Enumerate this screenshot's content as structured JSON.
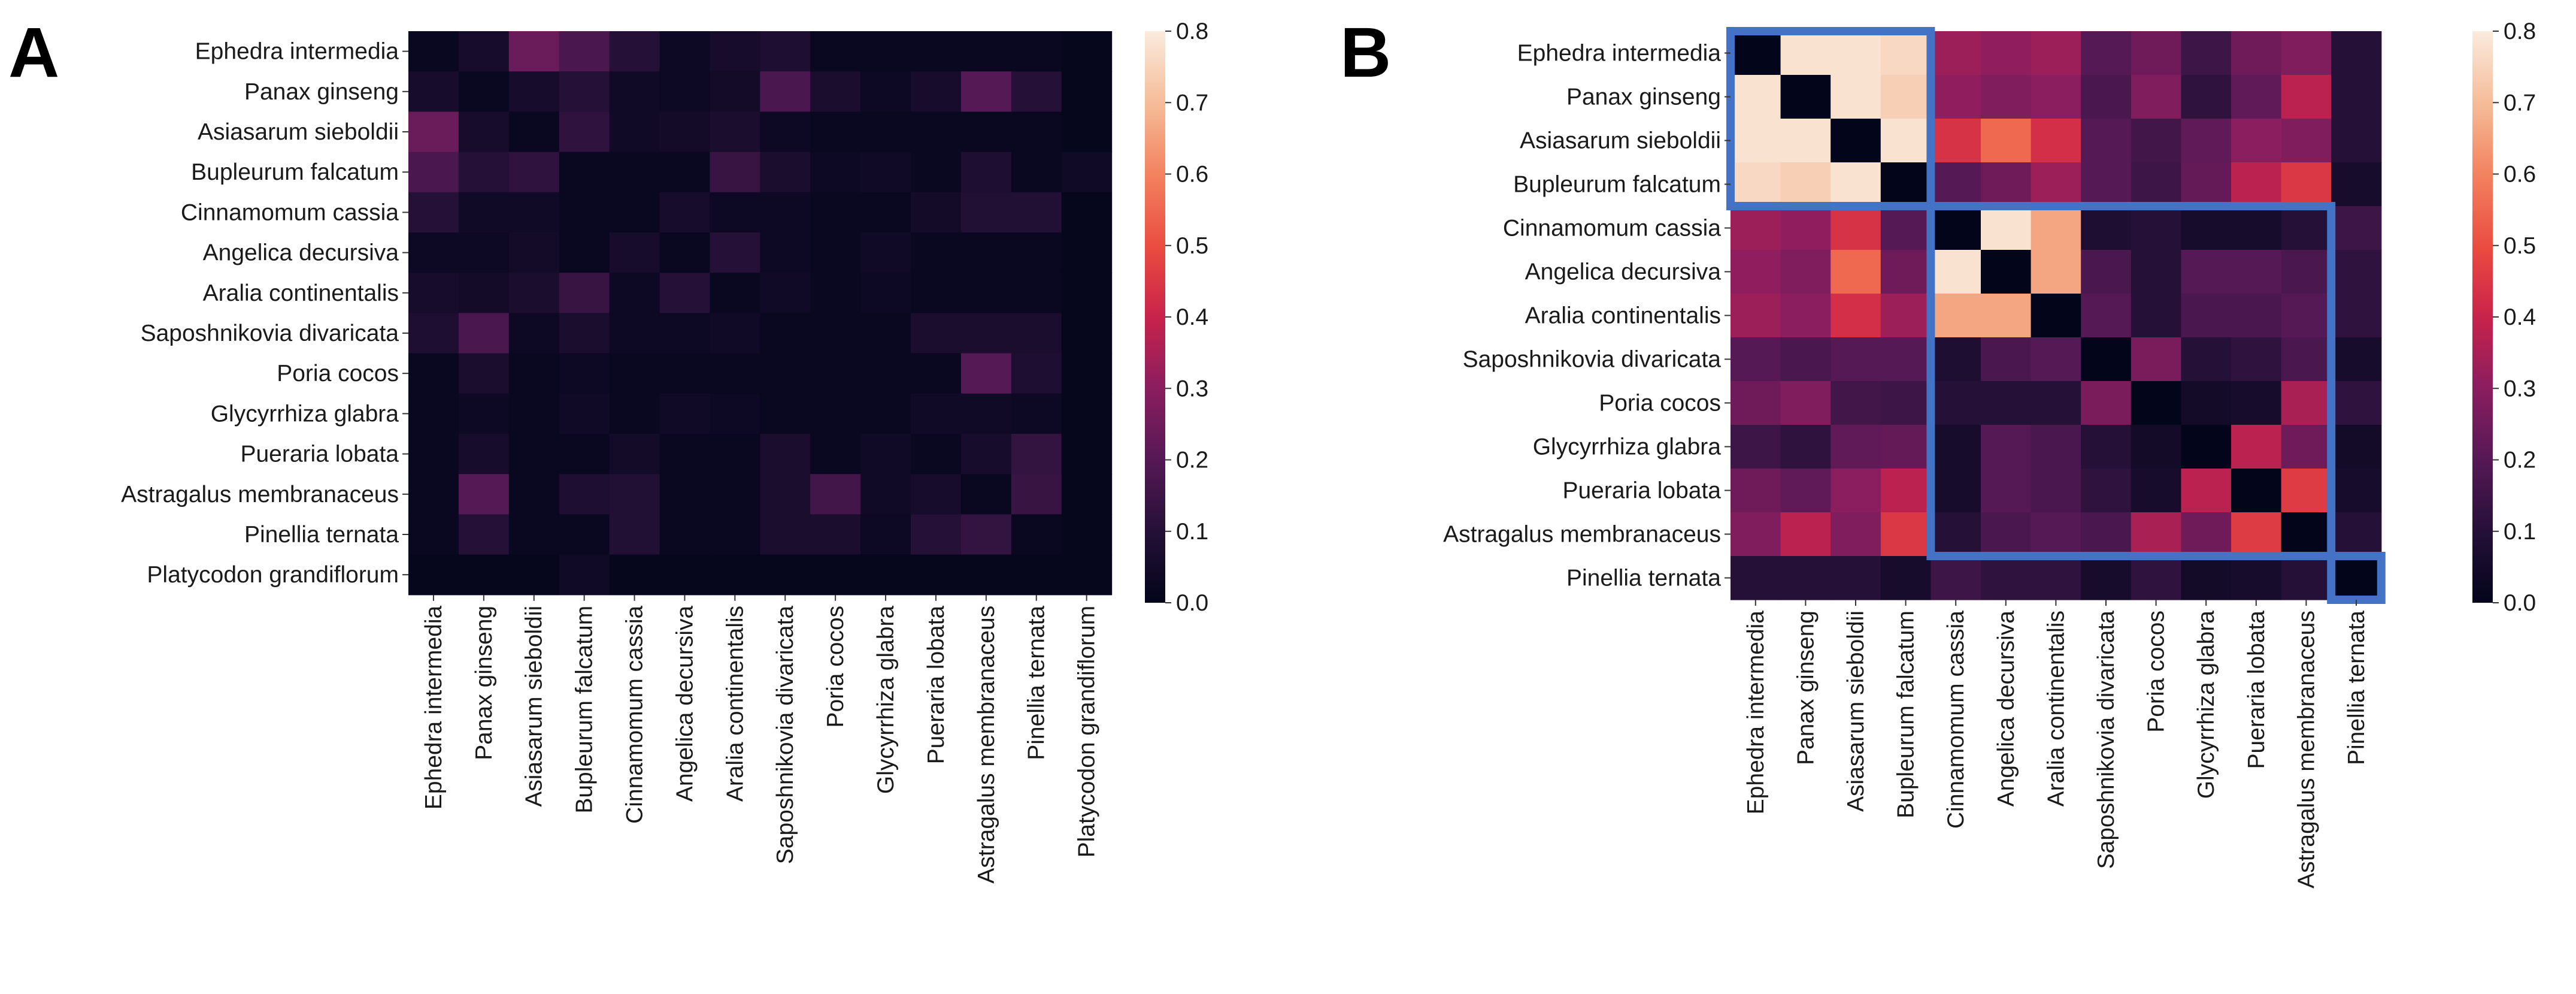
{
  "panel_a_label": "A",
  "panel_b_label": "B",
  "chart_data": [
    {
      "type": "heatmap",
      "panel": "A",
      "title": "",
      "rows": [
        "Ephedra intermedia",
        "Panax ginseng",
        "Asiasarum sieboldii",
        "Bupleurum falcatum",
        "Cinnamomum cassia",
        "Angelica decursiva",
        "Aralia continentalis",
        "Saposhnikovia divaricata",
        "Poria cocos",
        "Glycyrrhiza glabra",
        "Pueraria lobata",
        "Astragalus membranaceus",
        "Pinellia ternata",
        "Platycodon grandiflorum"
      ],
      "columns": [
        "Ephedra intermedia",
        "Panax ginseng",
        "Asiasarum sieboldii",
        "Bupleurum falcatum",
        "Cinnamomum cassia",
        "Angelica decursiva",
        "Aralia continentalis",
        "Saposhnikovia divaricata",
        "Poria cocos",
        "Glycyrrhiza glabra",
        "Pueraria lobata",
        "Astragalus membranaceus",
        "Pinellia ternata",
        "Platycodon grandiflorum"
      ],
      "values": [
        [
          0.02,
          0.06,
          0.24,
          0.18,
          0.1,
          0.03,
          0.06,
          0.08,
          0.02,
          0.02,
          0.02,
          0.02,
          0.02,
          0.01
        ],
        [
          0.06,
          0.02,
          0.06,
          0.1,
          0.04,
          0.03,
          0.05,
          0.18,
          0.07,
          0.03,
          0.06,
          0.2,
          0.1,
          0.01
        ],
        [
          0.24,
          0.06,
          0.02,
          0.12,
          0.04,
          0.05,
          0.07,
          0.03,
          0.02,
          0.02,
          0.02,
          0.02,
          0.02,
          0.01
        ],
        [
          0.18,
          0.1,
          0.12,
          0.02,
          0.02,
          0.02,
          0.14,
          0.07,
          0.03,
          0.04,
          0.02,
          0.08,
          0.02,
          0.04
        ],
        [
          0.1,
          0.04,
          0.04,
          0.02,
          0.02,
          0.06,
          0.03,
          0.03,
          0.02,
          0.02,
          0.05,
          0.09,
          0.09,
          0.01
        ],
        [
          0.03,
          0.03,
          0.05,
          0.02,
          0.06,
          0.02,
          0.1,
          0.03,
          0.02,
          0.04,
          0.02,
          0.02,
          0.02,
          0.01
        ],
        [
          0.06,
          0.05,
          0.07,
          0.14,
          0.03,
          0.1,
          0.02,
          0.04,
          0.02,
          0.03,
          0.02,
          0.02,
          0.02,
          0.01
        ],
        [
          0.08,
          0.18,
          0.03,
          0.07,
          0.03,
          0.03,
          0.04,
          0.02,
          0.02,
          0.02,
          0.07,
          0.07,
          0.07,
          0.01
        ],
        [
          0.02,
          0.07,
          0.02,
          0.03,
          0.02,
          0.02,
          0.02,
          0.02,
          0.02,
          0.02,
          0.02,
          0.2,
          0.08,
          0.01
        ],
        [
          0.02,
          0.03,
          0.02,
          0.04,
          0.02,
          0.04,
          0.03,
          0.02,
          0.02,
          0.02,
          0.04,
          0.04,
          0.03,
          0.01
        ],
        [
          0.02,
          0.06,
          0.02,
          0.02,
          0.05,
          0.02,
          0.02,
          0.07,
          0.02,
          0.04,
          0.02,
          0.06,
          0.13,
          0.01
        ],
        [
          0.02,
          0.2,
          0.02,
          0.08,
          0.09,
          0.02,
          0.02,
          0.07,
          0.16,
          0.04,
          0.06,
          0.02,
          0.14,
          0.01
        ],
        [
          0.02,
          0.1,
          0.02,
          0.02,
          0.09,
          0.02,
          0.02,
          0.07,
          0.07,
          0.03,
          0.1,
          0.13,
          0.02,
          0.01
        ],
        [
          0.01,
          0.01,
          0.01,
          0.04,
          0.01,
          0.01,
          0.01,
          0.01,
          0.01,
          0.01,
          0.01,
          0.01,
          0.01,
          0.01
        ]
      ],
      "colorbar": {
        "min": 0.0,
        "max": 0.8,
        "ticks": [
          "0.0",
          "0.1",
          "0.2",
          "0.3",
          "0.4",
          "0.5",
          "0.6",
          "0.7",
          "0.8"
        ]
      }
    },
    {
      "type": "heatmap",
      "panel": "B",
      "title": "",
      "rows": [
        "Ephedra intermedia",
        "Panax ginseng",
        "Asiasarum sieboldii",
        "Bupleurum falcatum",
        "Cinnamomum cassia",
        "Angelica decursiva",
        "Aralia continentalis",
        "Saposhnikovia divaricata",
        "Poria cocos",
        "Glycyrrhiza glabra",
        "Pueraria lobata",
        "Astragalus membranaceus",
        "Pinellia ternata"
      ],
      "columns": [
        "Ephedra intermedia",
        "Panax ginseng",
        "Asiasarum sieboldii",
        "Bupleurum falcatum",
        "Cinnamomum cassia",
        "Angelica decursiva",
        "Aralia continentalis",
        "Saposhnikovia divaricata",
        "Poria cocos",
        "Glycyrrhiza glabra",
        "Pueraria lobata",
        "Astragalus membranaceus",
        "Pinellia ternata"
      ],
      "values": [
        [
          0.0,
          0.78,
          0.78,
          0.76,
          0.33,
          0.31,
          0.33,
          0.2,
          0.25,
          0.15,
          0.25,
          0.28,
          0.1
        ],
        [
          0.78,
          0.0,
          0.78,
          0.74,
          0.31,
          0.28,
          0.3,
          0.18,
          0.28,
          0.12,
          0.22,
          0.38,
          0.1
        ],
        [
          0.78,
          0.78,
          0.0,
          0.78,
          0.44,
          0.55,
          0.43,
          0.2,
          0.16,
          0.22,
          0.3,
          0.28,
          0.1
        ],
        [
          0.76,
          0.74,
          0.78,
          0.0,
          0.2,
          0.25,
          0.33,
          0.2,
          0.15,
          0.23,
          0.38,
          0.45,
          0.06
        ],
        [
          0.33,
          0.31,
          0.44,
          0.2,
          0.0,
          0.78,
          0.66,
          0.08,
          0.1,
          0.06,
          0.06,
          0.1,
          0.15
        ],
        [
          0.31,
          0.28,
          0.55,
          0.25,
          0.78,
          0.0,
          0.66,
          0.18,
          0.1,
          0.2,
          0.2,
          0.18,
          0.12
        ],
        [
          0.33,
          0.3,
          0.43,
          0.33,
          0.66,
          0.66,
          0.0,
          0.2,
          0.1,
          0.18,
          0.18,
          0.2,
          0.12
        ],
        [
          0.2,
          0.18,
          0.2,
          0.2,
          0.08,
          0.18,
          0.2,
          0.0,
          0.27,
          0.1,
          0.12,
          0.18,
          0.06
        ],
        [
          0.25,
          0.28,
          0.16,
          0.15,
          0.1,
          0.1,
          0.1,
          0.27,
          0.0,
          0.05,
          0.06,
          0.35,
          0.12
        ],
        [
          0.15,
          0.12,
          0.22,
          0.23,
          0.06,
          0.2,
          0.18,
          0.1,
          0.05,
          0.0,
          0.38,
          0.25,
          0.05
        ],
        [
          0.25,
          0.22,
          0.3,
          0.38,
          0.06,
          0.2,
          0.18,
          0.12,
          0.06,
          0.38,
          0.0,
          0.46,
          0.06
        ],
        [
          0.28,
          0.38,
          0.28,
          0.45,
          0.1,
          0.18,
          0.2,
          0.18,
          0.35,
          0.25,
          0.46,
          0.0,
          0.1
        ],
        [
          0.1,
          0.1,
          0.1,
          0.06,
          0.15,
          0.12,
          0.12,
          0.06,
          0.12,
          0.05,
          0.06,
          0.1,
          0.0
        ]
      ],
      "clusters": [
        [
          0,
          3
        ],
        [
          4,
          11
        ],
        [
          12,
          12
        ]
      ],
      "cluster_color": "#4472C4",
      "colorbar": {
        "min": 0.0,
        "max": 0.8,
        "ticks": [
          "0.0",
          "0.1",
          "0.2",
          "0.3",
          "0.4",
          "0.5",
          "0.6",
          "0.7",
          "0.8"
        ]
      }
    }
  ]
}
